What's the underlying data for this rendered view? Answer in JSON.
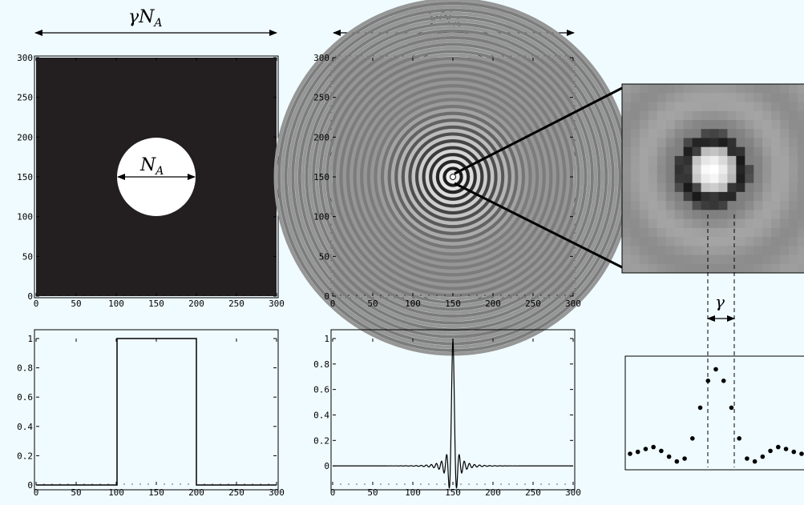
{
  "labels": {
    "top_arrow_left": "γN",
    "top_arrow_left_sub": "A",
    "top_arrow_middle": "γN",
    "top_arrow_middle_sub": "A",
    "aperture_label": "N",
    "aperture_label_sub": "A",
    "gamma_label": "γ"
  },
  "colors": {
    "background": "#f0fbff",
    "aperture_fill": "#231f20",
    "aperture_disk": "#ffffff",
    "line": "#000000"
  },
  "chart_data": [
    {
      "type": "heatmap",
      "panel": "aperture-image",
      "description_values": {
        "disk_center": [
          150,
          150
        ],
        "disk_diameter": 100
      },
      "xlim": [
        0,
        300
      ],
      "ylim": [
        0,
        300
      ],
      "x_ticks": [
        "0",
        "50",
        "100",
        "150",
        "200",
        "250",
        "300"
      ],
      "y_ticks": [
        "0",
        "50",
        "100",
        "150",
        "200",
        "250",
        "300"
      ]
    },
    {
      "type": "heatmap",
      "panel": "diffraction-image",
      "xlim": [
        0,
        300
      ],
      "ylim": [
        0,
        300
      ],
      "x_ticks": [
        "0",
        "50",
        "100",
        "150",
        "200",
        "250",
        "300"
      ],
      "y_ticks": [
        "0",
        "50",
        "100",
        "150",
        "200",
        "250",
        "300"
      ]
    },
    {
      "type": "line",
      "panel": "aperture-profile",
      "x": [
        0,
        101,
        101,
        200,
        200,
        300
      ],
      "y": [
        0,
        0,
        1,
        1,
        0,
        0
      ],
      "xlim": [
        0,
        300
      ],
      "ylim": [
        0,
        1
      ],
      "x_ticks": [
        "0",
        "50",
        "100",
        "150",
        "200",
        "250",
        "300"
      ],
      "y_ticks": [
        "0",
        "0.2",
        "0.4",
        "0.6",
        "0.8",
        "1"
      ]
    },
    {
      "type": "line",
      "panel": "diffraction-profile",
      "x": [
        150
      ],
      "y": [
        1
      ],
      "xlim": [
        0,
        300
      ],
      "ylim": [
        -0.15,
        1
      ],
      "x_ticks": [
        "0",
        "50",
        "100",
        "150",
        "200",
        "250",
        "300"
      ],
      "y_ticks": [
        "0",
        "0.2",
        "0.4",
        "0.6",
        "0.8",
        "1"
      ]
    },
    {
      "type": "scatter",
      "panel": "zoom-profile",
      "x": [
        0,
        1,
        2,
        3,
        4,
        5,
        6,
        7,
        8,
        9,
        10,
        11,
        12,
        13,
        14,
        15,
        16,
        17,
        18,
        19,
        20,
        21,
        22
      ],
      "y": [
        0.1,
        0.12,
        0.15,
        0.17,
        0.13,
        0.07,
        0.02,
        0.05,
        0.26,
        0.58,
        0.86,
        0.98,
        0.86,
        0.58,
        0.26,
        0.05,
        0.02,
        0.07,
        0.13,
        0.17,
        0.15,
        0.12,
        0.1
      ]
    }
  ]
}
